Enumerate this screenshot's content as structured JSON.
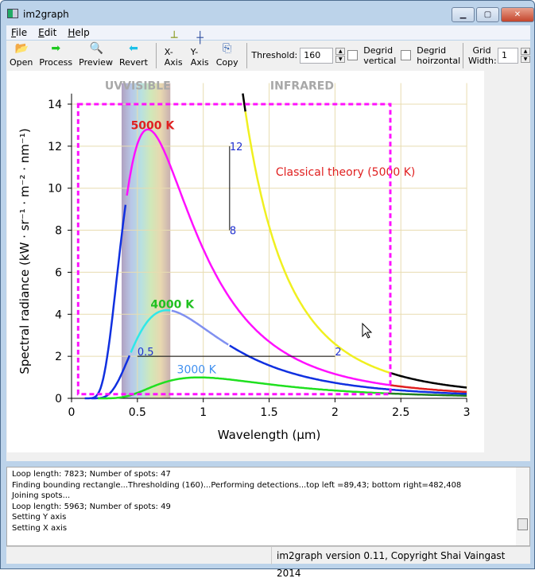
{
  "window": {
    "title": "im2graph",
    "minimize": "▁",
    "maximize": "▢",
    "close": "✕"
  },
  "menu": [
    "File",
    "Edit",
    "Help"
  ],
  "toolbar": {
    "buttons": [
      {
        "label": "Open",
        "icon": "open-folder-icon",
        "glyph": "📂",
        "color": "#2a8a2a"
      },
      {
        "label": "Process",
        "icon": "arrow-right-icon",
        "glyph": "➡",
        "color": "#1fc81f"
      },
      {
        "label": "Preview",
        "icon": "magnifier-icon",
        "glyph": "🔍",
        "color": "#a03030"
      },
      {
        "label": "Revert",
        "icon": "arrow-left-icon",
        "glyph": "⬅",
        "color": "#1cc0e8"
      },
      {
        "label": "X-Axis",
        "icon": "x-axis-icon",
        "glyph": "┴",
        "color": "#8a9a20"
      },
      {
        "label": "Y-Axis",
        "icon": "y-axis-icon",
        "glyph": "┼",
        "color": "#3050a0"
      },
      {
        "label": "Copy",
        "icon": "copy-icon",
        "glyph": "⎘",
        "color": "#3060b0"
      }
    ],
    "threshold_label": "Threshold:",
    "threshold_value": "160",
    "degrid_vertical": "Degrid vertical",
    "degrid_horizontal": "Degrid hoirzontal",
    "grid_width_label": "Grid Width:",
    "grid_width_value": "1"
  },
  "chart_data": {
    "type": "line",
    "xlabel": "Wavelength (µm)",
    "ylabel": "Spectral radiance (kW · sr⁻¹ · m⁻² · nm⁻¹)",
    "xlim": [
      0,
      3
    ],
    "ylim": [
      0,
      14
    ],
    "xticks": [
      "0",
      "0.5",
      "1",
      "1.5",
      "2",
      "2.5",
      "3"
    ],
    "yticks": [
      "0",
      "2",
      "4",
      "6",
      "8",
      "10",
      "12",
      "14"
    ],
    "regions": {
      "uv": "UV",
      "visible": "VISIBLE",
      "infrared": "INFRARED"
    },
    "series": [
      {
        "name": "5000 K",
        "temperature": 5000
      },
      {
        "name": "4000 K",
        "temperature": 4000
      },
      {
        "name": "3000 K",
        "temperature": 3000
      },
      {
        "name": "Classical theory (5000 K)",
        "temperature": 5000,
        "classical": true
      }
    ],
    "markers": {
      "y_high": "12",
      "y_low": "8",
      "x_low": "0.5",
      "x_high": "2"
    }
  },
  "log": [
    "Loop length: 7823; Number of spots: 47",
    "Finding bounding rectangle...Thresholding (160)...Performing detections...top left =89,43; bottom right=482,408",
    "Joining spots...",
    "Loop length: 5963; Number of spots: 49",
    "Setting Y axis",
    "Setting X axis"
  ],
  "status": "im2graph version 0.11, Copyright Shai Vaingast 2014"
}
